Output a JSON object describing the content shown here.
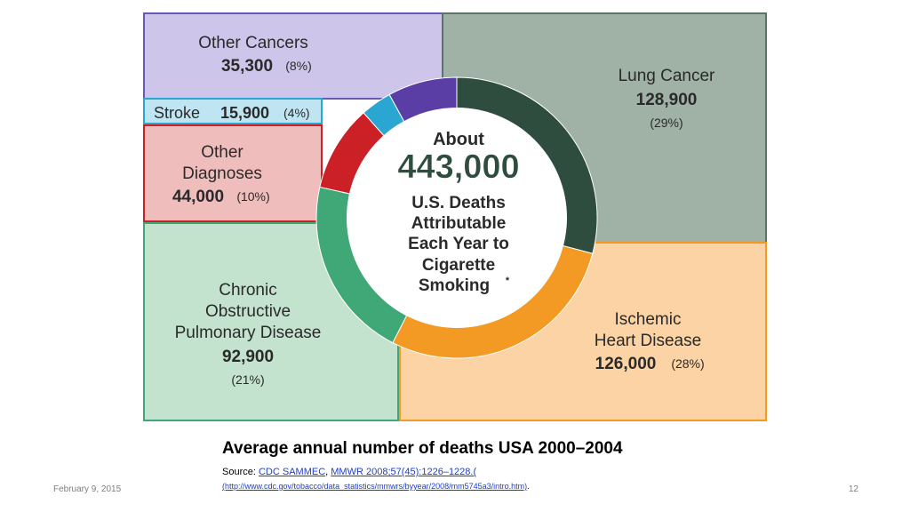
{
  "chart_data": {
    "type": "pie",
    "center_text": {
      "line1": "About",
      "total": "443,000",
      "lines": [
        "U.S. Deaths",
        "Attributable",
        "Each Year to",
        "Cigarette",
        "Smoking"
      ],
      "footnote_mark": "*"
    },
    "slices": [
      {
        "name": "Lung Cancer",
        "label_lines": [
          "Lung Cancer"
        ],
        "value": 128900,
        "value_label": "128,900",
        "percent_label": "(29%)",
        "color": "#2e4d3e",
        "box_color": "#9fb2a5"
      },
      {
        "name": "Ischemic Heart Disease",
        "label_lines": [
          "Ischemic",
          "Heart Disease"
        ],
        "value": 126000,
        "value_label": "126,000",
        "percent_label": "(28%)",
        "color": "#f39a24",
        "box_color": "#fbd3a4"
      },
      {
        "name": "Chronic Obstructive Pulmonary Disease",
        "label_lines": [
          "Chronic",
          "Obstructive",
          "Pulmonary Disease"
        ],
        "value": 92900,
        "value_label": "92,900",
        "percent_label": "(21%)",
        "color": "#3fa876",
        "box_color": "#c4e3cf"
      },
      {
        "name": "Other Diagnoses",
        "label_lines": [
          "Other",
          "Diagnoses"
        ],
        "value": 44000,
        "value_label": "44,000",
        "percent_label": "(10%)",
        "color": "#cc2027",
        "box_color": "#f0bdbd"
      },
      {
        "name": "Stroke",
        "label_lines": [
          "Stroke"
        ],
        "value": 15900,
        "value_label": "15,900",
        "percent_label": "(4%)",
        "color": "#2aa6d2",
        "box_color": "#bfe4f2"
      },
      {
        "name": "Other Cancers",
        "label_lines": [
          "Other Cancers"
        ],
        "value": 35300,
        "value_label": "35,300",
        "percent_label": "(8%)",
        "color": "#5b3ea5",
        "box_color": "#cdc5ea"
      }
    ]
  },
  "caption": "Average annual number of deaths  USA 2000–2004",
  "source": {
    "prefix": "Source: ",
    "link1": "CDC SAMMEC",
    "sep": ", ",
    "link2": "MMWR 2008;57(45):1226–1228.(",
    "url": "(http://www.cdc.gov/tobacco/data_statistics/mmwrs/byyear/2008/mm5745a3/intro.htm)",
    "url_suffix": "."
  },
  "footer": {
    "date": "February 9, 2015",
    "page_number": "12"
  },
  "colors": {
    "text_dark": "#222222",
    "link": "#1a3fd0"
  }
}
